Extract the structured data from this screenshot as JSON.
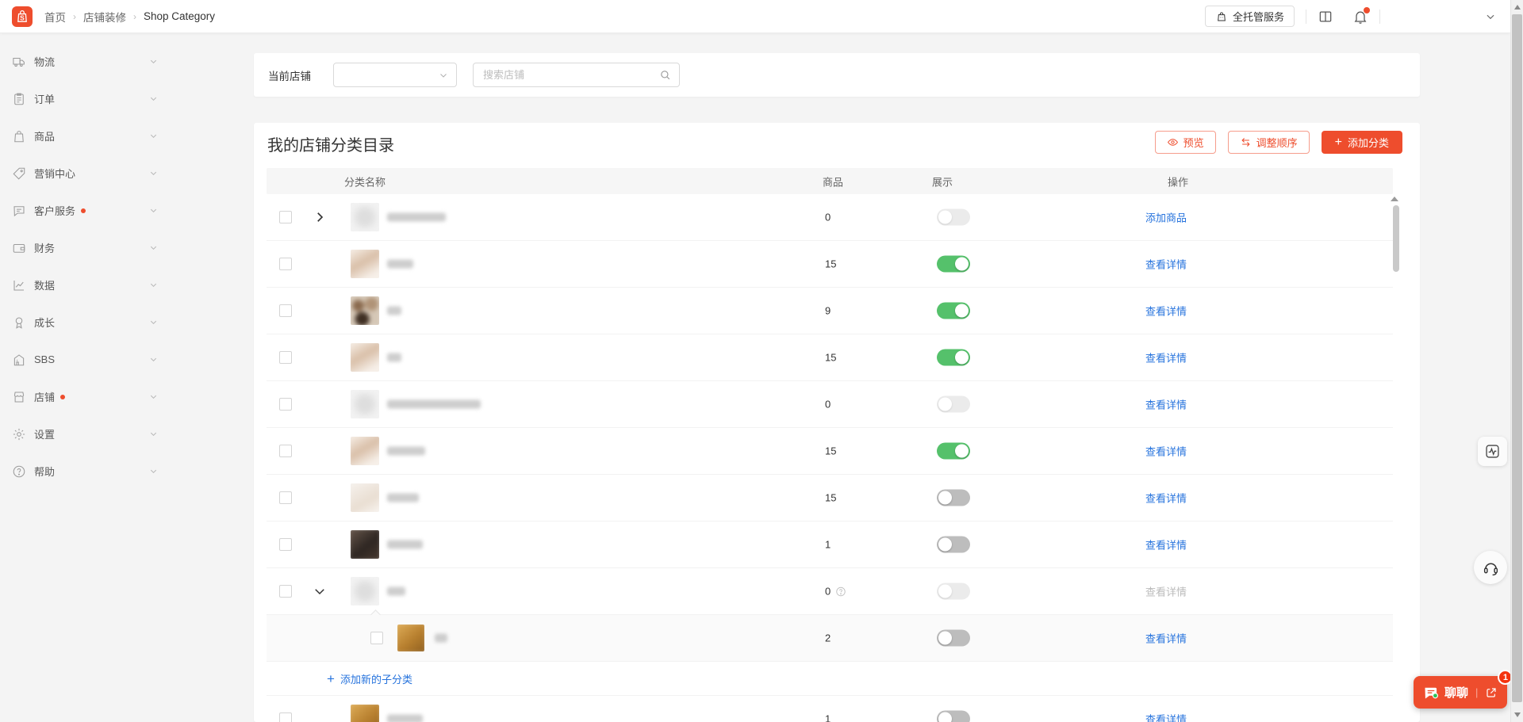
{
  "colors": {
    "accent": "#ee4d2d",
    "toggle_on": "#55c16b",
    "toggle_off": "#bdbdbd",
    "link_blue": "#2673dd"
  },
  "topbar": {
    "breadcrumb": [
      "首页",
      "店铺装修",
      "Shop Category"
    ],
    "managed_service": "全托管服务",
    "icons": [
      "shopee-logo",
      "fulfillment-bag-icon",
      "layout-columns-icon",
      "bell-icon",
      "chevron-down-icon"
    ],
    "bell_has_dot": true
  },
  "sidebar": {
    "items": [
      {
        "key": "logistics",
        "label": "物流",
        "icon": "truck-icon",
        "dot": false
      },
      {
        "key": "orders",
        "label": "订单",
        "icon": "clipboard-icon",
        "dot": false
      },
      {
        "key": "products",
        "label": "商品",
        "icon": "bag-icon",
        "dot": false
      },
      {
        "key": "marketing",
        "label": "营销中心",
        "icon": "tag-icon",
        "dot": false
      },
      {
        "key": "service",
        "label": "客户服务",
        "icon": "chat-icon",
        "dot": true
      },
      {
        "key": "finance",
        "label": "财务",
        "icon": "wallet-icon",
        "dot": false
      },
      {
        "key": "data",
        "label": "数据",
        "icon": "chart-icon",
        "dot": false
      },
      {
        "key": "growth",
        "label": "成长",
        "icon": "medal-icon",
        "dot": false
      },
      {
        "key": "sbs",
        "label": "SBS",
        "icon": "building-icon",
        "dot": false
      },
      {
        "key": "shop",
        "label": "店铺",
        "icon": "storefront-icon",
        "dot": true
      },
      {
        "key": "settings",
        "label": "设置",
        "icon": "gear-icon",
        "dot": false
      },
      {
        "key": "help",
        "label": "帮助",
        "icon": "question-icon",
        "dot": false
      }
    ]
  },
  "filter": {
    "label": "当前店铺",
    "select_value": "",
    "search_placeholder": "搜索店铺"
  },
  "content": {
    "title": "我的店铺分类目录",
    "preview_button": "预览",
    "reorder_button": "调整顺序",
    "add_button": "添加分类"
  },
  "table": {
    "headers": {
      "name": "分类名称",
      "products": "商品",
      "display": "展示",
      "action": "操作"
    },
    "rows": [
      {
        "kind": "row",
        "expand": "collapsed",
        "image": "placeholder",
        "name_blur_width": 74,
        "count": "0",
        "help": false,
        "toggle": "disabled",
        "action": "添加商品",
        "action_disabled": false
      },
      {
        "kind": "row",
        "expand": null,
        "image": "beige",
        "name_blur_width": 33,
        "count": "15",
        "help": false,
        "toggle": "on",
        "action": "查看详情",
        "action_disabled": false
      },
      {
        "kind": "row",
        "expand": null,
        "image": "collage",
        "name_blur_width": 18,
        "count": "9",
        "help": false,
        "toggle": "on",
        "action": "查看详情",
        "action_disabled": false
      },
      {
        "kind": "row",
        "expand": null,
        "image": "beige",
        "name_blur_width": 18,
        "count": "15",
        "help": false,
        "toggle": "on",
        "action": "查看详情",
        "action_disabled": false
      },
      {
        "kind": "row",
        "expand": null,
        "image": "placeholder",
        "name_blur_width": 118,
        "count": "0",
        "help": false,
        "toggle": "disabled",
        "action": "查看详情",
        "action_disabled": false
      },
      {
        "kind": "row",
        "expand": null,
        "image": "beige",
        "name_blur_width": 48,
        "count": "15",
        "help": false,
        "toggle": "on",
        "action": "查看详情",
        "action_disabled": false
      },
      {
        "kind": "row",
        "expand": null,
        "image": "beige-light",
        "name_blur_width": 40,
        "count": "15",
        "help": false,
        "toggle": "off",
        "action": "查看详情",
        "action_disabled": false
      },
      {
        "kind": "row",
        "expand": null,
        "image": "dark",
        "name_blur_width": 45,
        "count": "1",
        "help": false,
        "toggle": "off",
        "action": "查看详情",
        "action_disabled": false
      },
      {
        "kind": "row",
        "expand": "expanded",
        "image": "placeholder",
        "name_blur_width": 23,
        "count": "0",
        "help": true,
        "toggle": "disabled",
        "action": "查看详情",
        "action_disabled": true
      },
      {
        "kind": "subrow",
        "expand": null,
        "image": "gold",
        "name_blur_width": 16,
        "count": "2",
        "help": false,
        "toggle": "off",
        "action": "查看详情",
        "action_disabled": false
      },
      {
        "kind": "addsub",
        "label": "添加新的子分类"
      },
      {
        "kind": "row",
        "expand": null,
        "image": "gold",
        "name_blur_width": 45,
        "count": "1",
        "help": false,
        "toggle": "off",
        "action": "查看详情",
        "action_disabled": false
      }
    ]
  },
  "floating": {
    "chat_label": "聊聊",
    "chat_badge": "1",
    "icons": [
      "chat-bubble-icon",
      "popout-icon",
      "pulse-monitor-icon",
      "headset-icon"
    ]
  }
}
